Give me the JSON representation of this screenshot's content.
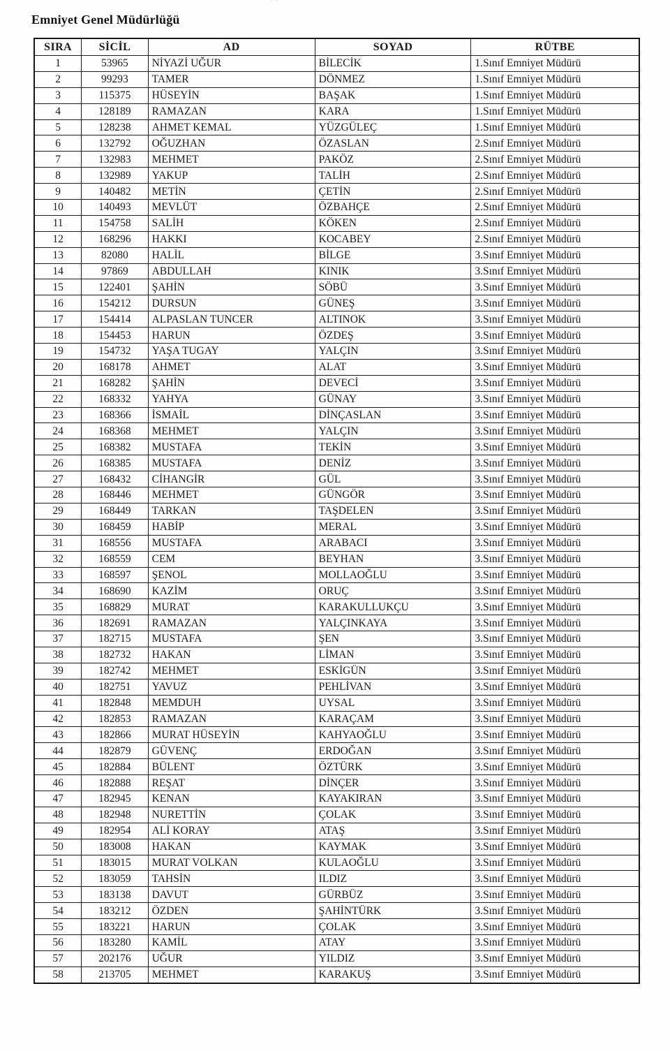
{
  "page": {
    "title": "Emniyet Genel Müdürlüğü",
    "top_mark": "''"
  },
  "table": {
    "headers": [
      "SIRA",
      "SİCİL",
      "AD",
      "SOYAD",
      "RÜTBE"
    ],
    "rows": [
      [
        "1",
        "53965",
        "NİYAZİ UĞUR",
        "BİLECİK",
        "1.Sınıf Emniyet Müdürü"
      ],
      [
        "2",
        "99293",
        "TAMER",
        "DÖNMEZ",
        "1.Sınıf Emniyet Müdürü"
      ],
      [
        "3",
        "115375",
        "HÜSEYİN",
        "BAŞAK",
        "1.Sınıf Emniyet Müdürü"
      ],
      [
        "4",
        "128189",
        "RAMAZAN",
        "KARA",
        "1.Sınıf Emniyet Müdürü"
      ],
      [
        "5",
        "128238",
        "AHMET KEMAL",
        "YÜZGÜLEÇ",
        "1.Sınıf Emniyet Müdürü"
      ],
      [
        "6",
        "132792",
        "OĞUZHAN",
        "ÖZASLAN",
        "2.Sınıf Emniyet Müdürü"
      ],
      [
        "7",
        "132983",
        "MEHMET",
        "PAKÖZ",
        "2.Sınıf Emniyet Müdürü"
      ],
      [
        "8",
        "132989",
        "YAKUP",
        "TALİH",
        "2.Sınıf Emniyet Müdürü"
      ],
      [
        "9",
        "140482",
        "METİN",
        "ÇETİN",
        "2.Sınıf Emniyet Müdürü"
      ],
      [
        "10",
        "140493",
        "MEVLÜT",
        "ÖZBAHÇE",
        "2.Sınıf Emniyet Müdürü"
      ],
      [
        "11",
        "154758",
        "SALİH",
        "KÖKEN",
        "2.Sınıf Emniyet Müdürü"
      ],
      [
        "12",
        "168296",
        "HAKKI",
        "KOCABEY",
        "2.Sınıf Emniyet Müdürü"
      ],
      [
        "13",
        "82080",
        "HALİL",
        "BİLGE",
        "3.Sınıf Emniyet Müdürü"
      ],
      [
        "14",
        "97869",
        "ABDULLAH",
        "KINIK",
        "3.Sınıf Emniyet Müdürü"
      ],
      [
        "15",
        "122401",
        "ŞAHİN",
        "SÖBÜ",
        "3.Sınıf Emniyet Müdürü"
      ],
      [
        "16",
        "154212",
        "DURSUN",
        "GÜNEŞ",
        "3.Sınıf Emniyet Müdürü"
      ],
      [
        "17",
        "154414",
        "ALPASLAN TUNCER",
        "ALTINOK",
        "3.Sınıf Emniyet Müdürü"
      ],
      [
        "18",
        "154453",
        "HARUN",
        "ÖZDEŞ",
        "3.Sınıf Emniyet Müdürü"
      ],
      [
        "19",
        "154732",
        "YAŞA TUGAY",
        "YALÇIN",
        "3.Sınıf Emniyet Müdürü"
      ],
      [
        "20",
        "168178",
        "AHMET",
        "ALAT",
        "3.Sınıf Emniyet Müdürü"
      ],
      [
        "21",
        "168282",
        "ŞAHİN",
        "DEVECİ",
        "3.Sınıf Emniyet Müdürü"
      ],
      [
        "22",
        "168332",
        "YAHYA",
        "GÜNAY",
        "3.Sınıf Emniyet Müdürü"
      ],
      [
        "23",
        "168366",
        "İSMAİL",
        "DİNÇASLAN",
        "3.Sınıf Emniyet Müdürü"
      ],
      [
        "24",
        "168368",
        "MEHMET",
        "YALÇIN",
        "3.Sınıf Emniyet Müdürü"
      ],
      [
        "25",
        "168382",
        "MUSTAFA",
        "TEKİN",
        "3.Sınıf Emniyet Müdürü"
      ],
      [
        "26",
        "168385",
        "MUSTAFA",
        "DENİZ",
        "3.Sınıf Emniyet Müdürü"
      ],
      [
        "27",
        "168432",
        "CİHANGİR",
        "GÜL",
        "3.Sınıf Emniyet Müdürü"
      ],
      [
        "28",
        "168446",
        "MEHMET",
        "GÜNGÖR",
        "3.Sınıf Emniyet Müdürü"
      ],
      [
        "29",
        "168449",
        "TARKAN",
        "TAŞDELEN",
        "3.Sınıf Emniyet Müdürü"
      ],
      [
        "30",
        "168459",
        "HABİP",
        "MERAL",
        "3.Sınıf Emniyet Müdürü"
      ],
      [
        "31",
        "168556",
        "MUSTAFA",
        "ARABACI",
        "3.Sınıf Emniyet Müdürü"
      ],
      [
        "32",
        "168559",
        "CEM",
        "BEYHAN",
        "3.Sınıf Emniyet Müdürü"
      ],
      [
        "33",
        "168597",
        "ŞENOL",
        "MOLLAOĞLU",
        "3.Sınıf Emniyet Müdürü"
      ],
      [
        "34",
        "168690",
        "KAZİM",
        "ORUÇ",
        "3.Sınıf Emniyet Müdürü"
      ],
      [
        "35",
        "168829",
        "MURAT",
        "KARAKULLUKÇU",
        "3.Sınıf Emniyet Müdürü"
      ],
      [
        "36",
        "182691",
        "RAMAZAN",
        "YALÇINKAYA",
        "3.Sınıf Emniyet Müdürü"
      ],
      [
        "37",
        "182715",
        "MUSTAFA",
        "ŞEN",
        "3.Sınıf Emniyet Müdürü"
      ],
      [
        "38",
        "182732",
        "HAKAN",
        "LİMAN",
        "3.Sınıf Emniyet Müdürü"
      ],
      [
        "39",
        "182742",
        "MEHMET",
        "ESKİGÜN",
        "3.Sınıf Emniyet Müdürü"
      ],
      [
        "40",
        "182751",
        "YAVUZ",
        "PEHLİVAN",
        "3.Sınıf Emniyet Müdürü"
      ],
      [
        "41",
        "182848",
        "MEMDUH",
        "UYSAL",
        "3.Sınıf Emniyet Müdürü"
      ],
      [
        "42",
        "182853",
        "RAMAZAN",
        "KARAÇAM",
        "3.Sınıf Emniyet Müdürü"
      ],
      [
        "43",
        "182866",
        "MURAT HÜSEYİN",
        "KAHYAOĞLU",
        "3.Sınıf Emniyet Müdürü"
      ],
      [
        "44",
        "182879",
        "GÜVENÇ",
        "ERDOĞAN",
        "3.Sınıf Emniyet Müdürü"
      ],
      [
        "45",
        "182884",
        "BÜLENT",
        "ÖZTÜRK",
        "3.Sınıf Emniyet Müdürü"
      ],
      [
        "46",
        "182888",
        "REŞAT",
        "DİNÇER",
        "3.Sınıf Emniyet Müdürü"
      ],
      [
        "47",
        "182945",
        "KENAN",
        "KAYAKIRAN",
        "3.Sınıf Emniyet Müdürü"
      ],
      [
        "48",
        "182948",
        "NURETTİN",
        "ÇOLAK",
        "3.Sınıf Emniyet Müdürü"
      ],
      [
        "49",
        "182954",
        "ALİ KORAY",
        "ATAŞ",
        "3.Sınıf Emniyet Müdürü"
      ],
      [
        "50",
        "183008",
        "HAKAN",
        "KAYMAK",
        "3.Sınıf Emniyet Müdürü"
      ],
      [
        "51",
        "183015",
        "MURAT VOLKAN",
        "KULAOĞLU",
        "3.Sınıf Emniyet Müdürü"
      ],
      [
        "52",
        "183059",
        "TAHSİN",
        "ILDIZ",
        "3.Sınıf Emniyet Müdürü"
      ],
      [
        "53",
        "183138",
        "DAVUT",
        "GÜRBÜZ",
        "3.Sınıf Emniyet Müdürü"
      ],
      [
        "54",
        "183212",
        "ÖZDEN",
        "ŞAHİNTÜRK",
        "3.Sınıf Emniyet Müdürü"
      ],
      [
        "55",
        "183221",
        "HARUN",
        "ÇOLAK",
        "3.Sınıf Emniyet Müdürü"
      ],
      [
        "56",
        "183280",
        "KAMİL",
        "ATAY",
        "3.Sınıf Emniyet Müdürü"
      ],
      [
        "57",
        "202176",
        "UĞUR",
        "YILDIZ",
        "3.Sınıf Emniyet Müdürü"
      ],
      [
        "58",
        "213705",
        "MEHMET",
        "KARAKUŞ",
        "3.Sınıf Emniyet Müdürü"
      ]
    ]
  }
}
